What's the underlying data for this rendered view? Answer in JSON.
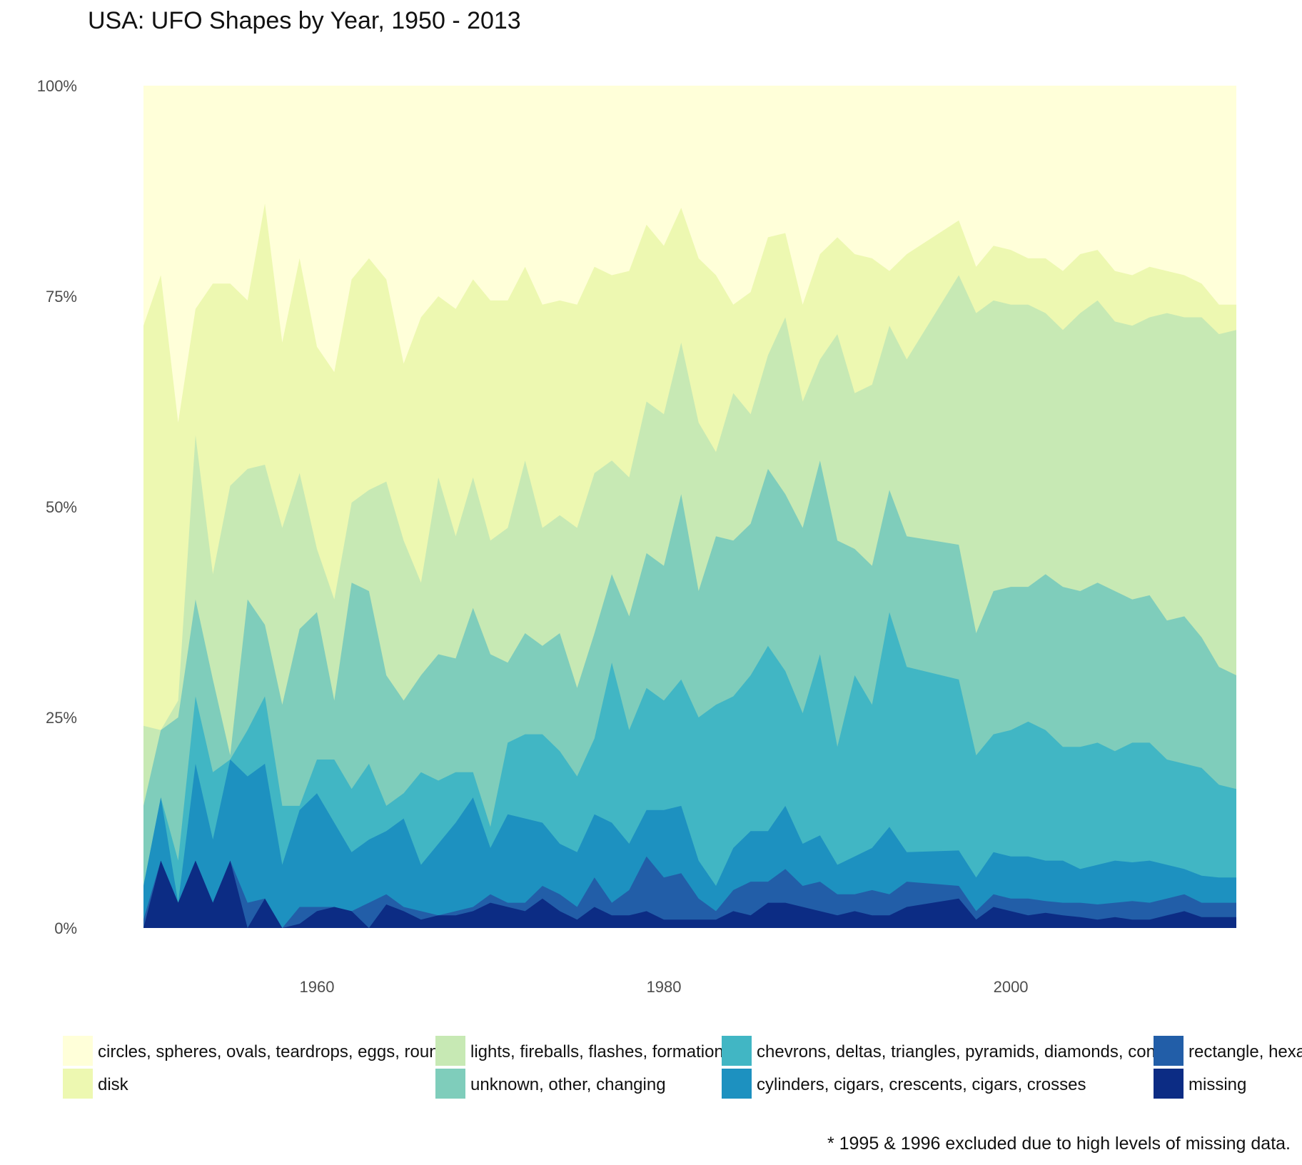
{
  "chart_data": {
    "type": "area",
    "stacked": true,
    "normalized": true,
    "title": "USA: UFO Shapes by Year, 1950 - 2013",
    "xlabel": "",
    "ylabel": "",
    "xlim": [
      1950,
      2013
    ],
    "ylim": [
      0,
      1
    ],
    "x_ticks": [
      1960,
      1980,
      2000
    ],
    "y_ticks": [
      {
        "value": 0,
        "label": "0%"
      },
      {
        "value": 0.25,
        "label": "25%"
      },
      {
        "value": 0.5,
        "label": "50%"
      },
      {
        "value": 0.75,
        "label": "75%"
      },
      {
        "value": 1,
        "label": "100%"
      }
    ],
    "grid": false,
    "legend_position": "bottom",
    "note": "* 1995 & 1996 excluded due to high levels of missing data.",
    "series_order_bottom_to_top": [
      "missing",
      "rectangle",
      "cylinders",
      "chevrons",
      "unknown",
      "lights",
      "disk",
      "circles"
    ],
    "legend": [
      {
        "key": "circles",
        "label": "circles, spheres, ovals, teardrops, eggs, round",
        "color": "#ffffd9"
      },
      {
        "key": "disk",
        "label": "disk",
        "color": "#edf8b1"
      },
      {
        "key": "lights",
        "label": "lights, fireballs, flashes, formations",
        "color": "#c7e9b4"
      },
      {
        "key": "unknown",
        "label": "unknown, other, changing",
        "color": "#7fcdbb"
      },
      {
        "key": "chevrons",
        "label": "chevrons, deltas, triangles, pyramids, diamonds, cones",
        "color": "#41b6c4"
      },
      {
        "key": "cylinders",
        "label": "cylinders, cigars, crescents, cigars, crosses",
        "color": "#1d91c0"
      },
      {
        "key": "rectangle",
        "label": "rectangle, hexag",
        "color": "#225ea8"
      },
      {
        "key": "missing",
        "label": "missing",
        "color": "#0c2c84"
      }
    ],
    "cumulative_boundaries": {
      "years": [
        1950,
        1951,
        1952,
        1953,
        1954,
        1955,
        1956,
        1957,
        1958,
        1959,
        1960,
        1961,
        1962,
        1963,
        1964,
        1965,
        1966,
        1967,
        1968,
        1969,
        1970,
        1971,
        1972,
        1973,
        1974,
        1975,
        1976,
        1977,
        1978,
        1979,
        1980,
        1981,
        1982,
        1983,
        1984,
        1985,
        1986,
        1987,
        1988,
        1989,
        1990,
        1991,
        1992,
        1993,
        1994,
        1997,
        1998,
        1999,
        2000,
        2001,
        2002,
        2003,
        2004,
        2005,
        2006,
        2007,
        2008,
        2009,
        2010,
        2011,
        2012,
        2013
      ],
      "missing": [
        0,
        0.08,
        0.03,
        0.08,
        0.03,
        0.08,
        0,
        0.035,
        0,
        0.005,
        0.02,
        0.025,
        0.02,
        0,
        0.028,
        0.02,
        0.01,
        0.015,
        0.015,
        0.02,
        0.03,
        0.025,
        0.02,
        0.035,
        0.02,
        0.01,
        0.025,
        0.015,
        0.015,
        0.02,
        0.01,
        0.01,
        0.01,
        0.01,
        0.02,
        0.015,
        0.03,
        0.03,
        0.025,
        0.02,
        0.015,
        0.02,
        0.015,
        0.015,
        0.025,
        0.035,
        0.01,
        0.025,
        0.02,
        0.015,
        0.018,
        0.015,
        0.013,
        0.01,
        0.013,
        0.01,
        0.01,
        0.015,
        0.02,
        0.013,
        0.013,
        0.013
      ],
      "rectangle": [
        0.01,
        0.08,
        0.03,
        0.08,
        0.03,
        0.08,
        0.03,
        0.035,
        0,
        0.025,
        0.025,
        0.025,
        0.02,
        0.03,
        0.04,
        0.025,
        0.02,
        0.015,
        0.02,
        0.025,
        0.04,
        0.03,
        0.03,
        0.05,
        0.04,
        0.025,
        0.06,
        0.03,
        0.045,
        0.085,
        0.06,
        0.065,
        0.035,
        0.02,
        0.045,
        0.055,
        0.055,
        0.07,
        0.05,
        0.055,
        0.04,
        0.04,
        0.045,
        0.04,
        0.055,
        0.05,
        0.02,
        0.04,
        0.035,
        0.035,
        0.032,
        0.03,
        0.03,
        0.028,
        0.03,
        0.032,
        0.03,
        0.035,
        0.04,
        0.03,
        0.03,
        0.03
      ],
      "cylinders": [
        0.05,
        0.155,
        0.03,
        0.195,
        0.105,
        0.2,
        0.18,
        0.195,
        0.075,
        0.14,
        0.16,
        0.125,
        0.09,
        0.105,
        0.115,
        0.13,
        0.075,
        0.1,
        0.125,
        0.155,
        0.095,
        0.135,
        0.13,
        0.125,
        0.1,
        0.09,
        0.135,
        0.125,
        0.1,
        0.14,
        0.14,
        0.145,
        0.08,
        0.05,
        0.095,
        0.115,
        0.115,
        0.145,
        0.1,
        0.11,
        0.075,
        0.085,
        0.095,
        0.12,
        0.09,
        0.092,
        0.06,
        0.09,
        0.085,
        0.085,
        0.08,
        0.08,
        0.07,
        0.075,
        0.08,
        0.078,
        0.08,
        0.075,
        0.07,
        0.062,
        0.06,
        0.06
      ],
      "chevrons": [
        0.05,
        0.155,
        0.08,
        0.275,
        0.185,
        0.2,
        0.235,
        0.275,
        0.145,
        0.145,
        0.2,
        0.2,
        0.165,
        0.195,
        0.145,
        0.16,
        0.185,
        0.175,
        0.185,
        0.185,
        0.12,
        0.22,
        0.23,
        0.23,
        0.21,
        0.18,
        0.225,
        0.315,
        0.235,
        0.285,
        0.27,
        0.295,
        0.25,
        0.265,
        0.275,
        0.3,
        0.335,
        0.305,
        0.255,
        0.325,
        0.215,
        0.3,
        0.265,
        0.375,
        0.31,
        0.295,
        0.205,
        0.23,
        0.235,
        0.245,
        0.235,
        0.215,
        0.215,
        0.22,
        0.21,
        0.22,
        0.22,
        0.2,
        0.195,
        0.19,
        0.17,
        0.165
      ],
      "unknown": [
        0.145,
        0.235,
        0.25,
        0.39,
        0.295,
        0.205,
        0.39,
        0.36,
        0.265,
        0.355,
        0.375,
        0.27,
        0.41,
        0.4,
        0.3,
        0.27,
        0.3,
        0.325,
        0.32,
        0.38,
        0.325,
        0.315,
        0.35,
        0.335,
        0.35,
        0.285,
        0.35,
        0.42,
        0.37,
        0.445,
        0.43,
        0.515,
        0.4,
        0.465,
        0.46,
        0.48,
        0.545,
        0.515,
        0.475,
        0.555,
        0.46,
        0.45,
        0.43,
        0.52,
        0.465,
        0.455,
        0.35,
        0.4,
        0.405,
        0.405,
        0.42,
        0.405,
        0.4,
        0.41,
        0.4,
        0.39,
        0.395,
        0.365,
        0.37,
        0.345,
        0.31,
        0.3
      ],
      "lights": [
        0.24,
        0.235,
        0.27,
        0.585,
        0.42,
        0.525,
        0.545,
        0.55,
        0.475,
        0.54,
        0.45,
        0.39,
        0.505,
        0.52,
        0.53,
        0.46,
        0.41,
        0.535,
        0.465,
        0.535,
        0.46,
        0.475,
        0.555,
        0.475,
        0.49,
        0.475,
        0.54,
        0.555,
        0.535,
        0.625,
        0.61,
        0.695,
        0.6,
        0.565,
        0.635,
        0.61,
        0.68,
        0.725,
        0.625,
        0.675,
        0.705,
        0.635,
        0.645,
        0.715,
        0.675,
        0.775,
        0.73,
        0.745,
        0.74,
        0.74,
        0.73,
        0.71,
        0.73,
        0.745,
        0.72,
        0.715,
        0.725,
        0.73,
        0.725,
        0.725,
        0.705,
        0.71
      ],
      "disk": [
        0.715,
        0.775,
        0.6,
        0.735,
        0.765,
        0.765,
        0.745,
        0.86,
        0.695,
        0.795,
        0.69,
        0.66,
        0.77,
        0.795,
        0.77,
        0.67,
        0.725,
        0.75,
        0.735,
        0.77,
        0.745,
        0.745,
        0.785,
        0.74,
        0.745,
        0.74,
        0.785,
        0.775,
        0.78,
        0.835,
        0.81,
        0.855,
        0.795,
        0.775,
        0.74,
        0.755,
        0.82,
        0.825,
        0.74,
        0.8,
        0.82,
        0.8,
        0.795,
        0.78,
        0.8,
        0.84,
        0.785,
        0.81,
        0.805,
        0.795,
        0.795,
        0.78,
        0.8,
        0.805,
        0.78,
        0.775,
        0.785,
        0.78,
        0.775,
        0.765,
        0.74,
        0.74
      ],
      "circles": [
        1,
        1,
        1,
        1,
        1,
        1,
        1,
        1,
        1,
        1,
        1,
        1,
        1,
        1,
        1,
        1,
        1,
        1,
        1,
        1,
        1,
        1,
        1,
        1,
        1,
        1,
        1,
        1,
        1,
        1,
        1,
        1,
        1,
        1,
        1,
        1,
        1,
        1,
        1,
        1,
        1,
        1,
        1,
        1,
        1,
        1,
        1,
        1,
        1,
        1,
        1,
        1,
        1,
        1,
        1,
        1,
        1,
        1,
        1,
        1,
        1,
        1
      ]
    }
  }
}
